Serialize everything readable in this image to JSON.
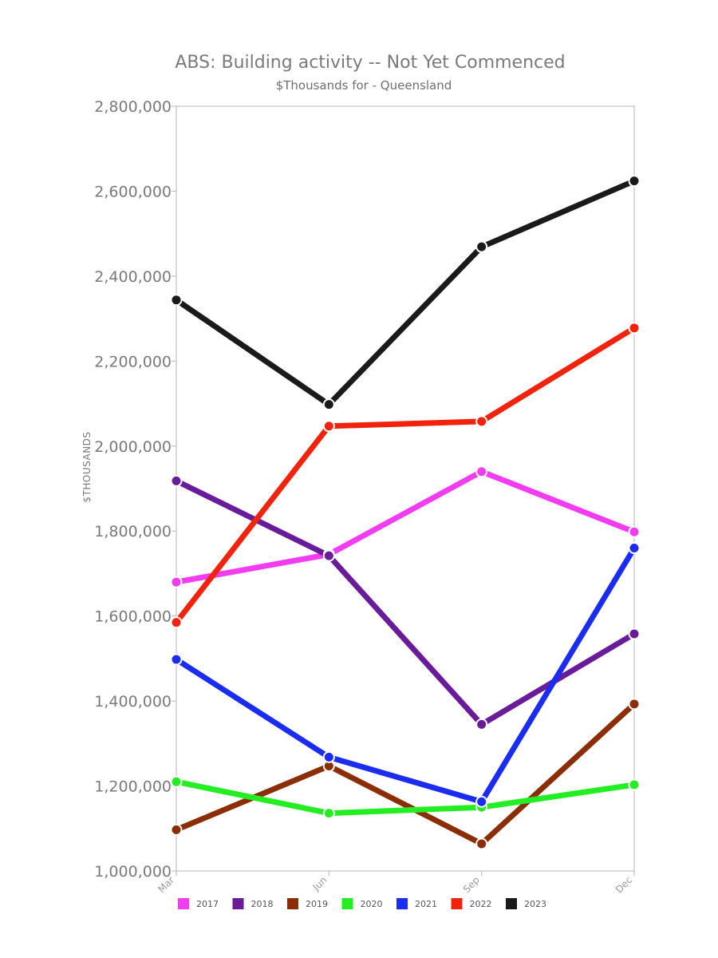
{
  "chart_data": {
    "type": "line",
    "title": "ABS: Building activity -- Not Yet Commenced",
    "subtitle": "$Thousands for - Queensland",
    "xlabel": "",
    "ylabel": "$THOUSANDS",
    "categories": [
      "Mar",
      "Jun",
      "Sep",
      "Dec"
    ],
    "ylim": [
      1000000,
      2800000
    ],
    "yticks": [
      1000000,
      1200000,
      1400000,
      1600000,
      1800000,
      2000000,
      2200000,
      2400000,
      2600000,
      2800000
    ],
    "ytick_labels": [
      "1,000,000",
      "1,200,000",
      "1,400,000",
      "1,600,000",
      "1,800,000",
      "2,000,000",
      "2,200,000",
      "2,400,000",
      "2,600,000",
      "2,800,000"
    ],
    "grid": false,
    "legend_position": "bottom",
    "series": [
      {
        "name": "2017",
        "color": "#f23cf2",
        "values": [
          1680000,
          1745000,
          1940000,
          1798000
        ]
      },
      {
        "name": "2018",
        "color": "#6a1b9a",
        "values": [
          1918000,
          1742000,
          1345000,
          1558000
        ]
      },
      {
        "name": "2019",
        "color": "#8b2e05",
        "values": [
          1097000,
          1247000,
          1064000,
          1393000
        ]
      },
      {
        "name": "2020",
        "color": "#22ee22",
        "values": [
          1210000,
          1136000,
          1150000,
          1203000
        ]
      },
      {
        "name": "2021",
        "color": "#1a2cf0",
        "values": [
          1498000,
          1268000,
          1163000,
          1760000
        ]
      },
      {
        "name": "2022",
        "color": "#f2230d",
        "values": [
          1585000,
          2047000,
          2058000,
          2278000
        ]
      },
      {
        "name": "2023",
        "color": "#1a1a1a",
        "values": [
          2344000,
          2098000,
          2469000,
          2624000
        ]
      }
    ]
  }
}
